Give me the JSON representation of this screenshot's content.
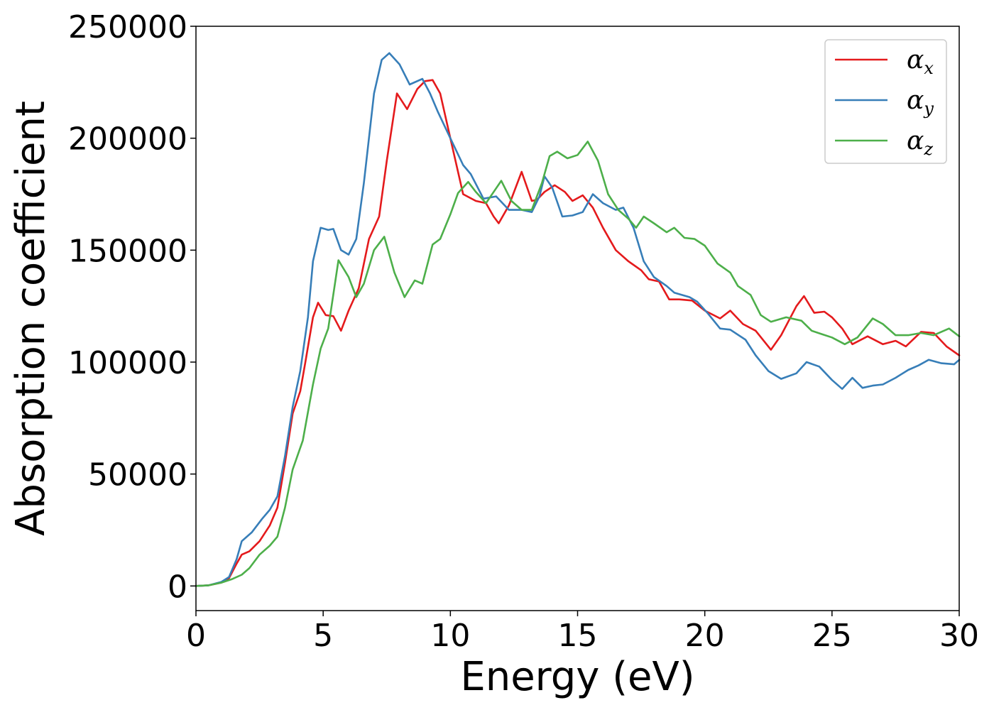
{
  "chart_data": {
    "type": "line",
    "xlabel": "Energy (eV)",
    "ylabel": "Absorption coefficient",
    "xlim": [
      0,
      30
    ],
    "ylim": [
      -11000,
      250000
    ],
    "xticks": [
      "0",
      "5",
      "10",
      "15",
      "20",
      "25",
      "30"
    ],
    "xtick_values": [
      0,
      5,
      10,
      15,
      20,
      25,
      30
    ],
    "yticks": [
      "0",
      "50000",
      "100000",
      "150000",
      "200000",
      "250000"
    ],
    "ytick_values": [
      0,
      50000,
      100000,
      150000,
      200000,
      250000
    ],
    "grid": false,
    "legend_position": "top-right",
    "series": [
      {
        "name": "α_x",
        "label_base": "α",
        "label_sub": "x",
        "color": "#e41a1c",
        "points": [
          [
            0,
            0
          ],
          [
            0.5,
            300
          ],
          [
            1.0,
            1500
          ],
          [
            1.3,
            3500
          ],
          [
            1.6,
            10000
          ],
          [
            1.8,
            14000
          ],
          [
            2.1,
            15500
          ],
          [
            2.5,
            20000
          ],
          [
            2.9,
            27000
          ],
          [
            3.2,
            35000
          ],
          [
            3.5,
            55000
          ],
          [
            3.8,
            77000
          ],
          [
            4.1,
            87000
          ],
          [
            4.3,
            100000
          ],
          [
            4.6,
            120000
          ],
          [
            4.8,
            126500
          ],
          [
            5.1,
            121000
          ],
          [
            5.4,
            120500
          ],
          [
            5.7,
            114000
          ],
          [
            6.0,
            123000
          ],
          [
            6.4,
            133000
          ],
          [
            6.8,
            155000
          ],
          [
            7.2,
            165000
          ],
          [
            7.5,
            190000
          ],
          [
            7.9,
            220000
          ],
          [
            8.3,
            213000
          ],
          [
            8.7,
            222000
          ],
          [
            9.0,
            225500
          ],
          [
            9.3,
            226000
          ],
          [
            9.6,
            220000
          ],
          [
            10.0,
            200000
          ],
          [
            10.5,
            175000
          ],
          [
            11.0,
            172000
          ],
          [
            11.4,
            171000
          ],
          [
            11.7,
            165000
          ],
          [
            11.9,
            162000
          ],
          [
            12.3,
            170000
          ],
          [
            12.8,
            185000
          ],
          [
            13.2,
            172000
          ],
          [
            13.4,
            172500
          ],
          [
            13.7,
            176000
          ],
          [
            14.1,
            179000
          ],
          [
            14.5,
            176000
          ],
          [
            14.8,
            172000
          ],
          [
            15.2,
            174500
          ],
          [
            15.6,
            169000
          ],
          [
            16.0,
            160000
          ],
          [
            16.5,
            150000
          ],
          [
            17.0,
            145000
          ],
          [
            17.5,
            141000
          ],
          [
            17.8,
            137000
          ],
          [
            18.2,
            136000
          ],
          [
            18.6,
            128000
          ],
          [
            19.0,
            128000
          ],
          [
            19.5,
            127500
          ],
          [
            20.0,
            123000
          ],
          [
            20.6,
            119500
          ],
          [
            21.0,
            123000
          ],
          [
            21.5,
            117000
          ],
          [
            22.0,
            114000
          ],
          [
            22.6,
            105500
          ],
          [
            23.0,
            112000
          ],
          [
            23.6,
            125000
          ],
          [
            23.9,
            129500
          ],
          [
            24.3,
            122000
          ],
          [
            24.7,
            122500
          ],
          [
            25.0,
            120000
          ],
          [
            25.4,
            115000
          ],
          [
            25.8,
            108000
          ],
          [
            26.4,
            111500
          ],
          [
            27.0,
            108000
          ],
          [
            27.5,
            109500
          ],
          [
            27.9,
            107000
          ],
          [
            28.5,
            113500
          ],
          [
            29.0,
            113000
          ],
          [
            29.5,
            107000
          ],
          [
            30.0,
            103000
          ]
        ]
      },
      {
        "name": "α_y",
        "label_base": "α",
        "label_sub": "y",
        "color": "#377eb8",
        "points": [
          [
            0,
            0
          ],
          [
            0.5,
            300
          ],
          [
            1.0,
            1800
          ],
          [
            1.3,
            4000
          ],
          [
            1.6,
            12000
          ],
          [
            1.8,
            20000
          ],
          [
            2.2,
            24000
          ],
          [
            2.6,
            30000
          ],
          [
            2.9,
            34000
          ],
          [
            3.2,
            40000
          ],
          [
            3.5,
            58000
          ],
          [
            3.8,
            80000
          ],
          [
            4.1,
            96000
          ],
          [
            4.4,
            120000
          ],
          [
            4.6,
            145000
          ],
          [
            4.9,
            160000
          ],
          [
            5.2,
            159000
          ],
          [
            5.4,
            159500
          ],
          [
            5.7,
            150000
          ],
          [
            6.0,
            148000
          ],
          [
            6.3,
            155000
          ],
          [
            6.6,
            180000
          ],
          [
            7.0,
            220000
          ],
          [
            7.3,
            235000
          ],
          [
            7.6,
            238000
          ],
          [
            8.0,
            233000
          ],
          [
            8.4,
            224000
          ],
          [
            8.9,
            226500
          ],
          [
            9.2,
            220000
          ],
          [
            9.5,
            212000
          ],
          [
            10.0,
            200000
          ],
          [
            10.5,
            188000
          ],
          [
            10.8,
            184000
          ],
          [
            11.3,
            173000
          ],
          [
            11.8,
            174000
          ],
          [
            12.3,
            168000
          ],
          [
            12.8,
            168000
          ],
          [
            13.2,
            167000
          ],
          [
            13.5,
            174000
          ],
          [
            13.7,
            183000
          ],
          [
            14.0,
            178000
          ],
          [
            14.4,
            165000
          ],
          [
            14.8,
            165500
          ],
          [
            15.2,
            167000
          ],
          [
            15.6,
            175000
          ],
          [
            16.0,
            171000
          ],
          [
            16.5,
            168000
          ],
          [
            16.8,
            169000
          ],
          [
            17.2,
            160000
          ],
          [
            17.6,
            145000
          ],
          [
            18.0,
            138000
          ],
          [
            18.5,
            134000
          ],
          [
            18.8,
            131000
          ],
          [
            19.4,
            129000
          ],
          [
            19.7,
            127000
          ],
          [
            20.1,
            122000
          ],
          [
            20.6,
            115000
          ],
          [
            21.0,
            114500
          ],
          [
            21.6,
            110000
          ],
          [
            22.0,
            103000
          ],
          [
            22.5,
            96000
          ],
          [
            23.0,
            92500
          ],
          [
            23.6,
            95000
          ],
          [
            24.0,
            100000
          ],
          [
            24.5,
            98000
          ],
          [
            25.0,
            92000
          ],
          [
            25.4,
            88000
          ],
          [
            25.8,
            93000
          ],
          [
            26.2,
            88500
          ],
          [
            26.6,
            89500
          ],
          [
            27.0,
            90000
          ],
          [
            27.5,
            93000
          ],
          [
            28.0,
            96500
          ],
          [
            28.4,
            98500
          ],
          [
            28.8,
            101000
          ],
          [
            29.3,
            99500
          ],
          [
            29.8,
            99000
          ],
          [
            30.0,
            101000
          ]
        ]
      },
      {
        "name": "α_z",
        "label_base": "α",
        "label_sub": "z",
        "color": "#4daf4a",
        "points": [
          [
            0,
            0
          ],
          [
            0.5,
            300
          ],
          [
            1.0,
            1500
          ],
          [
            1.4,
            3000
          ],
          [
            1.8,
            5000
          ],
          [
            2.1,
            8000
          ],
          [
            2.5,
            14000
          ],
          [
            2.9,
            18000
          ],
          [
            3.2,
            22000
          ],
          [
            3.5,
            35000
          ],
          [
            3.8,
            52000
          ],
          [
            4.2,
            65000
          ],
          [
            4.6,
            90000
          ],
          [
            4.9,
            106000
          ],
          [
            5.2,
            115000
          ],
          [
            5.6,
            145500
          ],
          [
            6.0,
            138000
          ],
          [
            6.3,
            129000
          ],
          [
            6.6,
            135000
          ],
          [
            7.0,
            150000
          ],
          [
            7.4,
            156000
          ],
          [
            7.8,
            140000
          ],
          [
            8.2,
            129000
          ],
          [
            8.6,
            136500
          ],
          [
            8.9,
            135000
          ],
          [
            9.3,
            152500
          ],
          [
            9.6,
            155000
          ],
          [
            10.0,
            166000
          ],
          [
            10.3,
            175500
          ],
          [
            10.7,
            180500
          ],
          [
            11.0,
            176000
          ],
          [
            11.4,
            171000
          ],
          [
            11.7,
            176000
          ],
          [
            12.0,
            181000
          ],
          [
            12.4,
            172000
          ],
          [
            12.8,
            168000
          ],
          [
            13.2,
            168000
          ],
          [
            13.6,
            180000
          ],
          [
            13.9,
            192000
          ],
          [
            14.2,
            194000
          ],
          [
            14.6,
            191000
          ],
          [
            15.0,
            192500
          ],
          [
            15.4,
            198500
          ],
          [
            15.8,
            190000
          ],
          [
            16.2,
            175000
          ],
          [
            16.6,
            168000
          ],
          [
            17.0,
            164000
          ],
          [
            17.3,
            160000
          ],
          [
            17.6,
            165000
          ],
          [
            18.0,
            162000
          ],
          [
            18.5,
            158000
          ],
          [
            18.8,
            160000
          ],
          [
            19.2,
            155500
          ],
          [
            19.6,
            155000
          ],
          [
            20.0,
            152000
          ],
          [
            20.5,
            144000
          ],
          [
            21.0,
            140000
          ],
          [
            21.3,
            134000
          ],
          [
            21.8,
            130000
          ],
          [
            22.2,
            121000
          ],
          [
            22.6,
            118000
          ],
          [
            23.2,
            120000
          ],
          [
            23.8,
            118500
          ],
          [
            24.2,
            114000
          ],
          [
            24.6,
            112500
          ],
          [
            25.0,
            111000
          ],
          [
            25.5,
            108000
          ],
          [
            26.0,
            111000
          ],
          [
            26.6,
            119500
          ],
          [
            27.0,
            117000
          ],
          [
            27.5,
            112000
          ],
          [
            28.0,
            112000
          ],
          [
            28.5,
            113000
          ],
          [
            29.0,
            112000
          ],
          [
            29.6,
            115000
          ],
          [
            30.0,
            111500
          ]
        ]
      }
    ]
  }
}
